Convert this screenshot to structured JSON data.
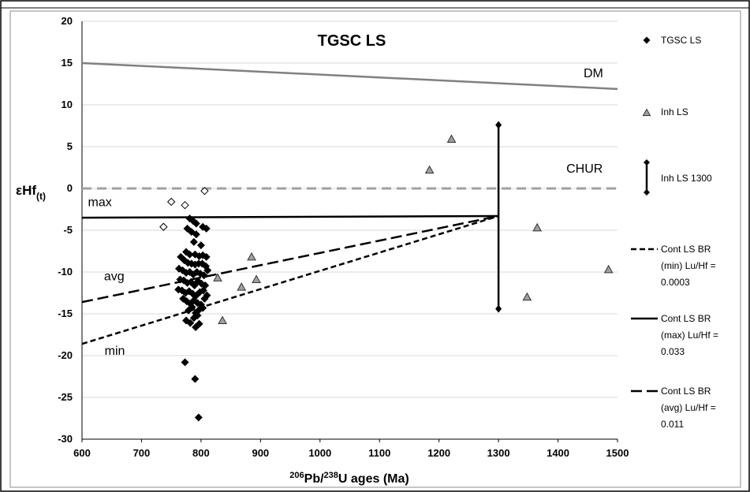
{
  "chart_data": {
    "type": "scatter",
    "title": "TGSC LS",
    "ylabel_main": "εHf",
    "ylabel_sub": "(t)",
    "xlabel_sup1": "206",
    "xlabel_mid1": "Pb/",
    "xlabel_sup2": "238",
    "xlabel_rest": "U ages (Ma)",
    "xlim": [
      600,
      1500
    ],
    "ylim": [
      -30,
      20
    ],
    "xticks": [
      "600",
      "700",
      "800",
      "900",
      "1000",
      "1100",
      "1200",
      "1300",
      "1400",
      "1500"
    ],
    "yticks": [
      "20",
      "15",
      "10",
      "5",
      "0",
      "-5",
      "-10",
      "-15",
      "-20",
      "-25",
      "-30"
    ],
    "grid": true,
    "legend_position": "right",
    "annotations": {
      "dm": "DM",
      "chur": "CHUR",
      "max": "max",
      "avg": "avg",
      "min": "min"
    },
    "reference_lines": {
      "dm": {
        "x": [
          600,
          1500
        ],
        "y": [
          15.0,
          11.9
        ],
        "color": "#808080"
      },
      "chur": {
        "x": [
          600,
          1500
        ],
        "y": [
          0,
          0
        ],
        "color": "#a0a0a0"
      },
      "max": {
        "x": [
          600,
          1300
        ],
        "y": [
          -3.5,
          -3.3
        ],
        "color": "#000000"
      },
      "avg": {
        "x": [
          600,
          1300
        ],
        "y": [
          -13.6,
          -3.3
        ],
        "color": "#000000"
      },
      "min": {
        "x": [
          600,
          1300
        ],
        "y": [
          -18.6,
          -3.3
        ],
        "color": "#000000"
      }
    },
    "errorbar_1300": {
      "x": 1300,
      "y_low": -14.4,
      "y_high": 7.6
    },
    "series": [
      {
        "name": "TGSC LS",
        "marker": "diamond-filled",
        "points": [
          [
            781,
            -3.6
          ],
          [
            787,
            -3.9
          ],
          [
            792,
            -4.2
          ],
          [
            803,
            -4.6
          ],
          [
            809,
            -4.8
          ],
          [
            777,
            -4.8
          ],
          [
            784,
            -5.2
          ],
          [
            792,
            -5.5
          ],
          [
            788,
            -6.4
          ],
          [
            800,
            -6.8
          ],
          [
            775,
            -7.6
          ],
          [
            781,
            -7.9
          ],
          [
            790,
            -7.9
          ],
          [
            797,
            -8.1
          ],
          [
            803,
            -8.0
          ],
          [
            809,
            -8.2
          ],
          [
            766,
            -8.2
          ],
          [
            772,
            -8.6
          ],
          [
            778,
            -8.9
          ],
          [
            784,
            -9.0
          ],
          [
            790,
            -9.1
          ],
          [
            796,
            -9.0
          ],
          [
            802,
            -9.0
          ],
          [
            808,
            -9.3
          ],
          [
            763,
            -9.6
          ],
          [
            769,
            -9.8
          ],
          [
            775,
            -10.1
          ],
          [
            781,
            -10.0
          ],
          [
            787,
            -10.3
          ],
          [
            793,
            -10.0
          ],
          [
            799,
            -10.2
          ],
          [
            805,
            -10.4
          ],
          [
            811,
            -9.8
          ],
          [
            765,
            -10.9
          ],
          [
            771,
            -11.0
          ],
          [
            777,
            -11.3
          ],
          [
            783,
            -11.2
          ],
          [
            789,
            -11.6
          ],
          [
            795,
            -11.1
          ],
          [
            801,
            -11.4
          ],
          [
            807,
            -11.6
          ],
          [
            762,
            -12.1
          ],
          [
            768,
            -12.2
          ],
          [
            774,
            -12.5
          ],
          [
            780,
            -12.3
          ],
          [
            786,
            -12.6
          ],
          [
            792,
            -12.8
          ],
          [
            798,
            -12.4
          ],
          [
            804,
            -12.2
          ],
          [
            810,
            -12.8
          ],
          [
            770,
            -13.2
          ],
          [
            776,
            -13.5
          ],
          [
            782,
            -13.8
          ],
          [
            788,
            -13.4
          ],
          [
            794,
            -13.7
          ],
          [
            800,
            -13.9
          ],
          [
            806,
            -13.2
          ],
          [
            779,
            -14.6
          ],
          [
            785,
            -14.2
          ],
          [
            791,
            -14.9
          ],
          [
            797,
            -14.5
          ],
          [
            803,
            -14.3
          ],
          [
            788,
            -15.5
          ],
          [
            794,
            -15.2
          ],
          [
            775,
            -15.8
          ],
          [
            782,
            -16.1
          ],
          [
            791,
            -16.6
          ],
          [
            797,
            -16.2
          ],
          [
            773,
            -20.8
          ],
          [
            790,
            -22.8
          ],
          [
            796,
            -27.4
          ]
        ]
      },
      {
        "name": "TGSC LS (open)",
        "marker": "diamond-open",
        "points": [
          [
            737,
            -4.6
          ],
          [
            750,
            -1.6
          ],
          [
            773,
            -2.0
          ],
          [
            806,
            -0.3
          ]
        ]
      },
      {
        "name": "Inh LS",
        "marker": "triangle",
        "points": [
          [
            1221,
            5.9
          ],
          [
            1184,
            2.2
          ],
          [
            1365,
            -4.7
          ],
          [
            1485,
            -9.7
          ],
          [
            1348,
            -13.0
          ],
          [
            828,
            -10.7
          ],
          [
            868,
            -11.8
          ],
          [
            885,
            -8.2
          ],
          [
            893,
            -10.9
          ],
          [
            836,
            -15.8
          ]
        ]
      }
    ],
    "legend": [
      {
        "key": "tgsc",
        "text": [
          "TGSC LS"
        ]
      },
      {
        "key": "inh",
        "text": [
          "Inh LS"
        ]
      },
      {
        "key": "inh1300",
        "text": [
          "Inh LS 1300"
        ]
      },
      {
        "key": "min",
        "text": [
          "Cont LS BR",
          "(min) Lu/Hf =",
          "0.0003"
        ]
      },
      {
        "key": "max",
        "text": [
          "Cont LS BR",
          "(max) Lu/Hf =",
          "0.033"
        ]
      },
      {
        "key": "avg",
        "text": [
          "Cont LS BR",
          "(avg) Lu/Hf =",
          "0.011"
        ]
      }
    ]
  }
}
